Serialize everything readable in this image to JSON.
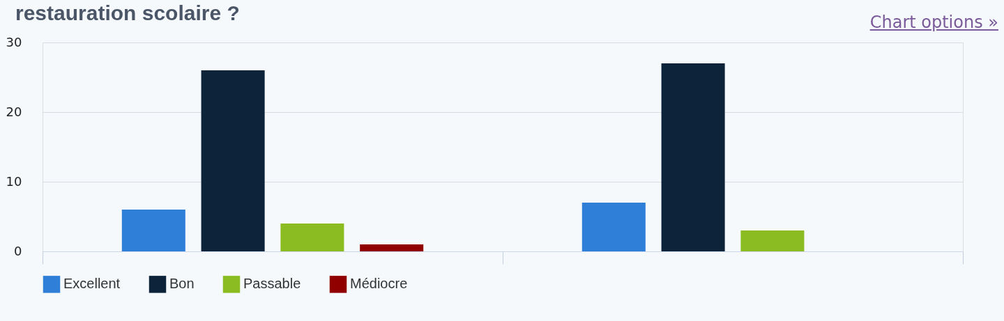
{
  "chart_data": {
    "type": "bar",
    "title": "restauration scolaire ?",
    "categories": [
      null,
      null
    ],
    "series": [
      {
        "name": "Excellent",
        "color": "#2f7ed8",
        "values": [
          6,
          7
        ]
      },
      {
        "name": "Bon",
        "color": "#0d233a",
        "values": [
          26,
          27
        ]
      },
      {
        "name": "Passable",
        "color": "#8bbc21",
        "values": [
          4,
          3
        ]
      },
      {
        "name": "Médiocre",
        "color": "#910000",
        "values": [
          1,
          0
        ]
      }
    ],
    "ylim": [
      0,
      30
    ],
    "yticks": [
      0,
      10,
      20,
      30
    ],
    "grid": "y",
    "legend": "bottom",
    "tick_labels": "y",
    "annotations": [
      "Chart options »"
    ]
  }
}
